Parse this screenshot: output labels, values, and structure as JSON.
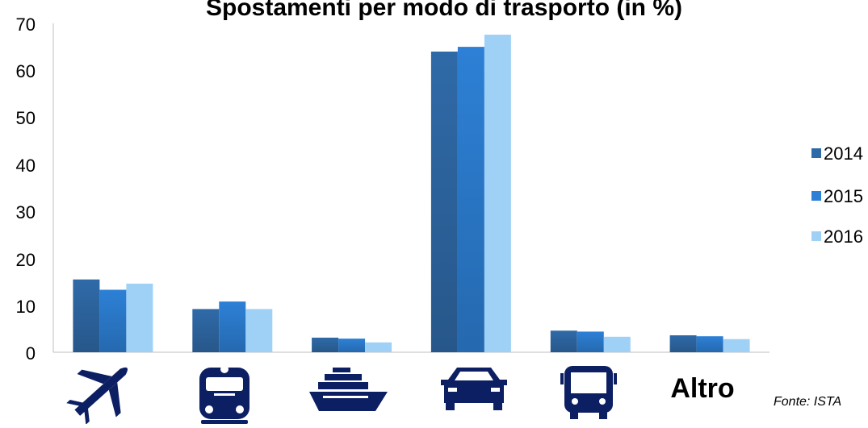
{
  "chart_data": {
    "type": "bar",
    "title": "Spostamenti per modo di trasporto (in %)",
    "categories": [
      "plane-icon",
      "train-icon",
      "ship-icon",
      "car-icon",
      "bus-icon",
      "Altro"
    ],
    "series": [
      {
        "name": "2014",
        "color": "#2f6aa8",
        "values": [
          15.5,
          9.2,
          3.1,
          64,
          4.6,
          3.6
        ]
      },
      {
        "name": "2015",
        "color": "#2d80d6",
        "values": [
          13.3,
          10.8,
          2.9,
          65,
          4.4,
          3.4
        ]
      },
      {
        "name": "2016",
        "color": "#9fd1f7",
        "values": [
          14.6,
          9.2,
          2.1,
          67.6,
          3.3,
          2.8
        ]
      }
    ],
    "ylim": [
      0,
      70
    ],
    "yticks": [
      "0",
      "10",
      "20",
      "30",
      "40",
      "50",
      "60",
      "70"
    ],
    "grid": false,
    "legend_position": "right",
    "source_note": "Fonte: ISTA"
  },
  "colors": {
    "icon": "#0d1f63",
    "axis": "#bfbfbf"
  }
}
